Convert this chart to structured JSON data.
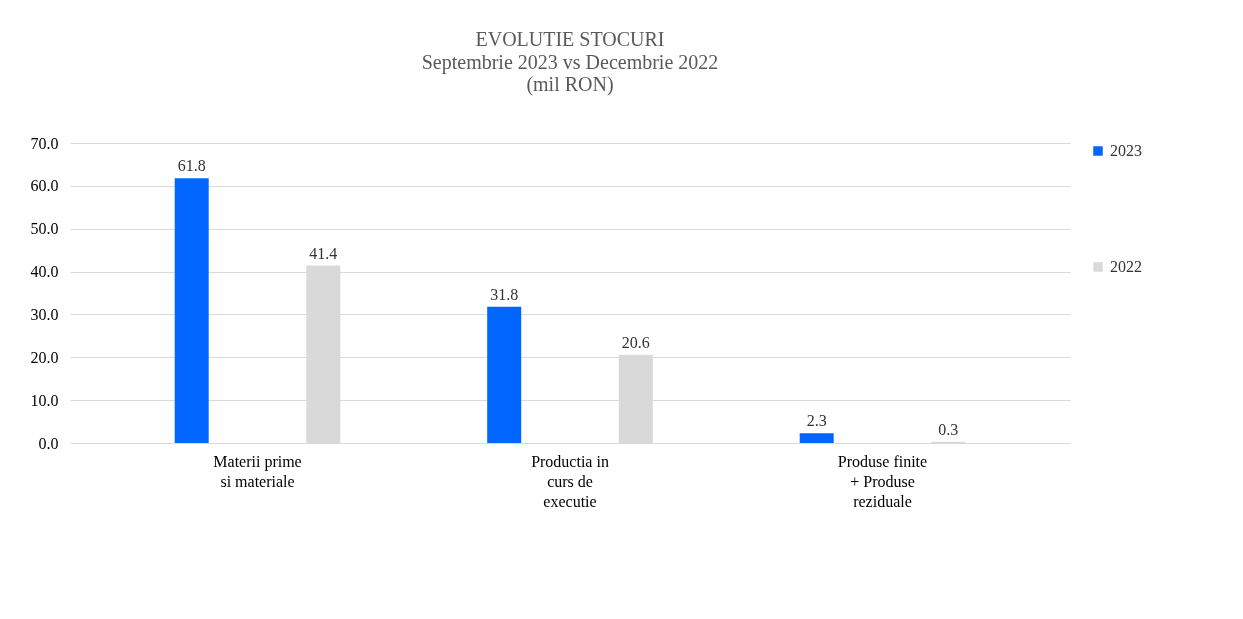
{
  "chart_data": {
    "type": "bar",
    "title": "EVOLUTIE STOCURI",
    "subtitle": "Septembrie 2023 vs Decembrie 2022\n(mil RON)",
    "categories": [
      "Materii prime\nsi materiale",
      "Productia in\ncurs de\nexecutie",
      "Produse finite\n+ Produse\nreziduale"
    ],
    "series": [
      {
        "name": "2023",
        "color": "#0066ff",
        "values": [
          61.8,
          31.8,
          2.3
        ]
      },
      {
        "name": "2022",
        "color": "#d9d9d9",
        "values": [
          41.4,
          20.6,
          0.3
        ]
      }
    ],
    "ylim": [
      0,
      70
    ],
    "yticks": [
      {
        "value": 0,
        "label": "0.0"
      },
      {
        "value": 10,
        "label": "10.0"
      },
      {
        "value": 20,
        "label": "20.0"
      },
      {
        "value": 30,
        "label": "30.0"
      },
      {
        "value": 40,
        "label": "40.0"
      },
      {
        "value": 50,
        "label": "50.0"
      },
      {
        "value": 60,
        "label": "60.0"
      },
      {
        "value": 70,
        "label": "70.0"
      }
    ],
    "grid": "y",
    "legend": "right",
    "data_labels": true
  }
}
